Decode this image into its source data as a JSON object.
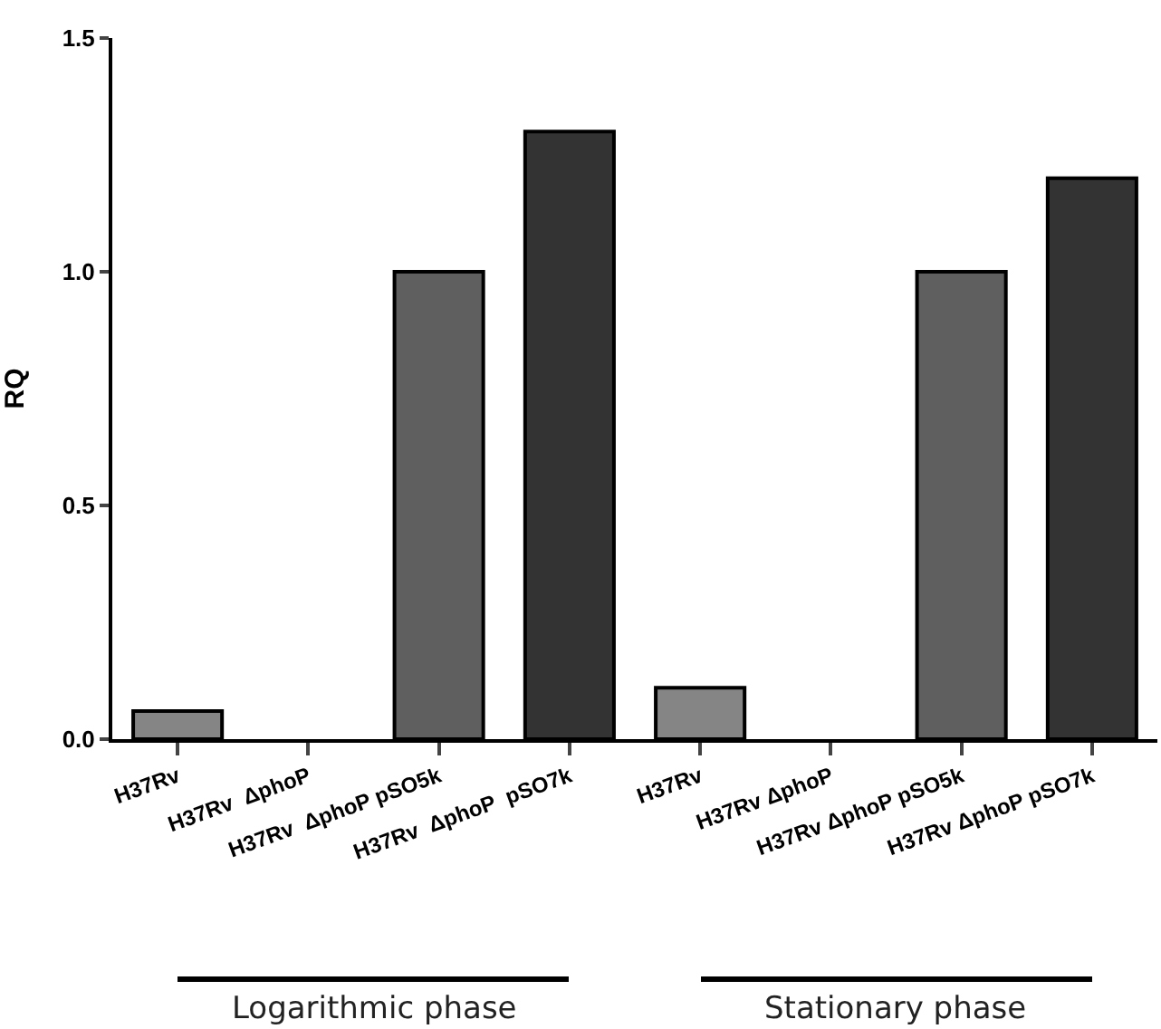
{
  "chart_data": {
    "type": "bar",
    "ylabel": "RQ",
    "categories": [
      "H37Rv",
      "H37Rv  ΔphoP",
      "H37Rv  ΔphoP pSO5k",
      "H37Rv  ΔphoP  pSO7k",
      "H37Rv",
      "H37Rv ΔphoP",
      "H37Rv ΔphoP pSO5k",
      "H37Rv ΔphoP pSO7k"
    ],
    "values": [
      0.06,
      0,
      1.0,
      1.3,
      0.11,
      0,
      1.0,
      1.2
    ],
    "colors": [
      "#858585",
      "#858585",
      "#5f5f5f",
      "#333333",
      "#858585",
      "#858585",
      "#5f5f5f",
      "#333333"
    ],
    "ylim": [
      0,
      1.5
    ],
    "yticks": [
      {
        "value": 0,
        "label": "0.0"
      },
      0.5,
      {
        "value": 1,
        "label": "1.0"
      },
      1.5
    ],
    "annotations": [
      "Logarithmic phase",
      "Stationary phase"
    ]
  }
}
